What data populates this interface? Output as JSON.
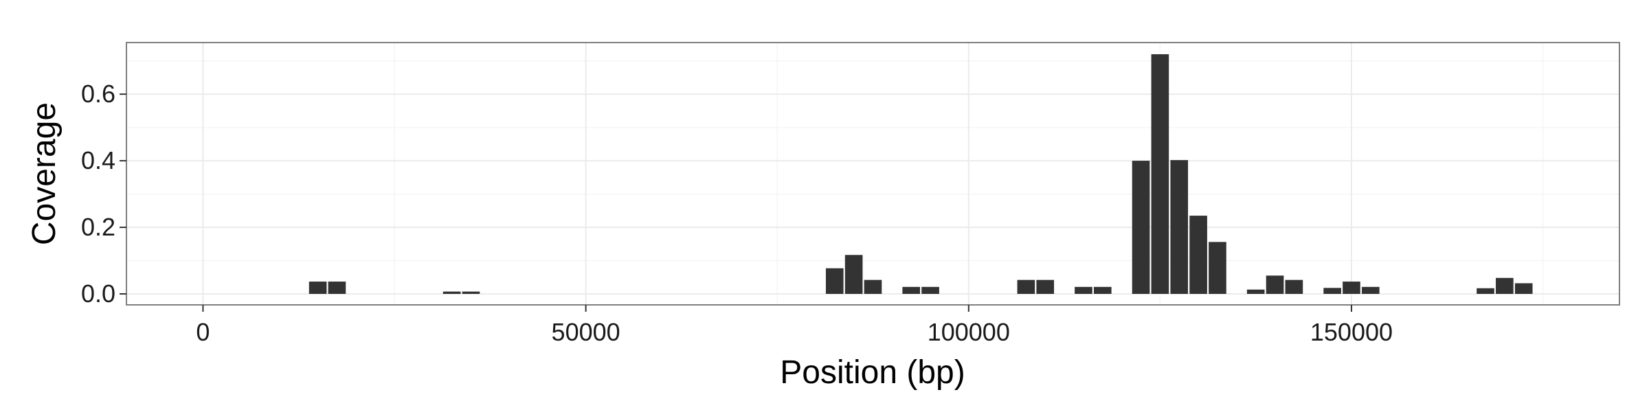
{
  "chart_data": {
    "type": "bar",
    "title": "",
    "xlabel": "Position (bp)",
    "ylabel": "Coverage",
    "xlim": [
      -10000,
      185000
    ],
    "ylim": [
      -0.033,
      0.755
    ],
    "x_ticks": [
      0,
      50000,
      100000,
      150000
    ],
    "x_tick_labels": [
      "0",
      "50000",
      "100000",
      "150000"
    ],
    "y_ticks": [
      0.0,
      0.2,
      0.4,
      0.6
    ],
    "y_tick_labels": [
      "0.0",
      "0.2",
      "0.4",
      "0.6"
    ],
    "grid": true,
    "bar_width": 2300,
    "bar_color": "#333333",
    "panel_background": "#ffffff",
    "grid_color": "#ebebeb",
    "border_color": "#7f7f7f",
    "series": [
      {
        "x": [
          15000,
          17500,
          32500,
          35000,
          82500,
          85000,
          87500,
          92500,
          95000,
          107500,
          110000,
          115000,
          117500,
          122500,
          125000,
          127500,
          130000,
          132500,
          137500,
          140000,
          142500,
          147500,
          150000,
          152500,
          167500,
          170000,
          172500
        ],
        "values": [
          0.037,
          0.037,
          0.007,
          0.007,
          0.077,
          0.117,
          0.042,
          0.021,
          0.021,
          0.042,
          0.042,
          0.021,
          0.021,
          0.4,
          0.72,
          0.402,
          0.235,
          0.156,
          0.013,
          0.055,
          0.042,
          0.018,
          0.037,
          0.021,
          0.017,
          0.048,
          0.032
        ]
      }
    ]
  }
}
